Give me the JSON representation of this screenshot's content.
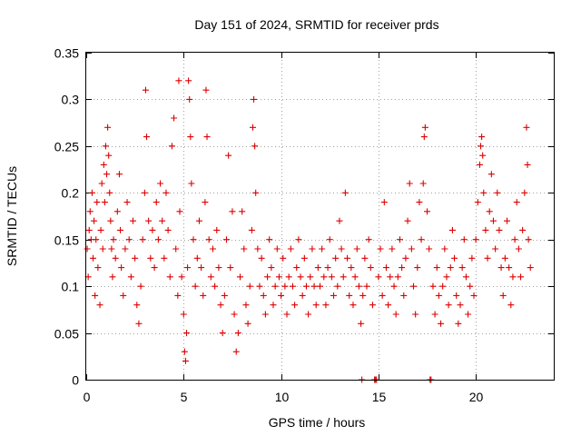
{
  "chart_data": {
    "type": "scatter",
    "title": "Day 151 of 2024, SRMTID for receiver prds",
    "xlabel": "GPS time / hours",
    "ylabel": "SRMTID / TECUs",
    "xlim": [
      0,
      24
    ],
    "ylim": [
      0,
      0.35
    ],
    "xticks": [
      0,
      5,
      10,
      15,
      20
    ],
    "xtick_labels": [
      "0",
      "5",
      "10",
      "15",
      "20"
    ],
    "yticks": [
      0,
      0.05,
      0.1,
      0.15,
      0.2,
      0.25,
      0.3,
      0.35
    ],
    "ytick_labels": [
      "0",
      "0.05",
      "0.1",
      "0.15",
      "0.2",
      "0.25",
      "0.3",
      "0.35"
    ],
    "grid": true,
    "marker": "+",
    "marker_color": "#dd0000",
    "series": [
      {
        "name": "SRMTID",
        "points": [
          [
            0.05,
            0.14
          ],
          [
            0.1,
            0.11
          ],
          [
            0.15,
            0.16
          ],
          [
            0.2,
            0.18
          ],
          [
            0.25,
            0.15
          ],
          [
            0.3,
            0.2
          ],
          [
            0.35,
            0.13
          ],
          [
            0.4,
            0.17
          ],
          [
            0.45,
            0.09
          ],
          [
            0.5,
            0.15
          ],
          [
            0.55,
            0.19
          ],
          [
            0.6,
            0.12
          ],
          [
            0.7,
            0.08
          ],
          [
            0.75,
            0.16
          ],
          [
            0.8,
            0.21
          ],
          [
            0.85,
            0.14
          ],
          [
            0.9,
            0.23
          ],
          [
            0.95,
            0.19
          ],
          [
            1.0,
            0.25
          ],
          [
            1.05,
            0.22
          ],
          [
            1.1,
            0.27
          ],
          [
            1.15,
            0.24
          ],
          [
            1.2,
            0.2
          ],
          [
            1.25,
            0.17
          ],
          [
            1.3,
            0.14
          ],
          [
            1.35,
            0.11
          ],
          [
            1.4,
            0.15
          ],
          [
            1.5,
            0.13
          ],
          [
            1.6,
            0.18
          ],
          [
            1.7,
            0.22
          ],
          [
            1.75,
            0.16
          ],
          [
            1.8,
            0.12
          ],
          [
            1.9,
            0.09
          ],
          [
            2.0,
            0.14
          ],
          [
            2.1,
            0.19
          ],
          [
            2.2,
            0.15
          ],
          [
            2.3,
            0.11
          ],
          [
            2.4,
            0.17
          ],
          [
            2.5,
            0.13
          ],
          [
            2.6,
            0.08
          ],
          [
            2.7,
            0.06
          ],
          [
            2.8,
            0.1
          ],
          [
            2.9,
            0.15
          ],
          [
            3.0,
            0.2
          ],
          [
            3.05,
            0.31
          ],
          [
            3.1,
            0.26
          ],
          [
            3.2,
            0.17
          ],
          [
            3.3,
            0.13
          ],
          [
            3.4,
            0.16
          ],
          [
            3.5,
            0.12
          ],
          [
            3.6,
            0.19
          ],
          [
            3.7,
            0.15
          ],
          [
            3.8,
            0.21
          ],
          [
            3.9,
            0.17
          ],
          [
            4.0,
            0.13
          ],
          [
            4.1,
            0.2
          ],
          [
            4.2,
            0.16
          ],
          [
            4.3,
            0.11
          ],
          [
            4.4,
            0.25
          ],
          [
            4.5,
            0.28
          ],
          [
            4.6,
            0.14
          ],
          [
            4.7,
            0.09
          ],
          [
            4.75,
            0.32
          ],
          [
            4.8,
            0.18
          ],
          [
            4.9,
            0.11
          ],
          [
            5.0,
            0.07
          ],
          [
            5.05,
            0.03
          ],
          [
            5.1,
            0.02
          ],
          [
            5.15,
            0.05
          ],
          [
            5.2,
            0.12
          ],
          [
            5.25,
            0.32
          ],
          [
            5.3,
            0.3
          ],
          [
            5.35,
            0.26
          ],
          [
            5.4,
            0.21
          ],
          [
            5.5,
            0.15
          ],
          [
            5.6,
            0.1
          ],
          [
            5.7,
            0.13
          ],
          [
            5.8,
            0.17
          ],
          [
            5.9,
            0.12
          ],
          [
            6.0,
            0.09
          ],
          [
            6.1,
            0.19
          ],
          [
            6.15,
            0.31
          ],
          [
            6.2,
            0.26
          ],
          [
            6.3,
            0.15
          ],
          [
            6.4,
            0.11
          ],
          [
            6.5,
            0.14
          ],
          [
            6.6,
            0.1
          ],
          [
            6.7,
            0.16
          ],
          [
            6.8,
            0.12
          ],
          [
            6.9,
            0.08
          ],
          [
            7.0,
            0.05
          ],
          [
            7.1,
            0.09
          ],
          [
            7.2,
            0.15
          ],
          [
            7.3,
            0.24
          ],
          [
            7.4,
            0.12
          ],
          [
            7.5,
            0.18
          ],
          [
            7.6,
            0.07
          ],
          [
            7.7,
            0.03
          ],
          [
            7.8,
            0.05
          ],
          [
            7.9,
            0.11
          ],
          [
            8.0,
            0.18
          ],
          [
            8.1,
            0.14
          ],
          [
            8.2,
            0.08
          ],
          [
            8.3,
            0.06
          ],
          [
            8.4,
            0.1
          ],
          [
            8.5,
            0.16
          ],
          [
            8.55,
            0.27
          ],
          [
            8.6,
            0.3
          ],
          [
            8.65,
            0.25
          ],
          [
            8.7,
            0.2
          ],
          [
            8.8,
            0.14
          ],
          [
            8.9,
            0.1
          ],
          [
            9.0,
            0.13
          ],
          [
            9.1,
            0.09
          ],
          [
            9.2,
            0.07
          ],
          [
            9.3,
            0.11
          ],
          [
            9.4,
            0.15
          ],
          [
            9.5,
            0.12
          ],
          [
            9.6,
            0.08
          ],
          [
            9.7,
            0.1
          ],
          [
            9.8,
            0.14
          ],
          [
            9.9,
            0.11
          ],
          [
            10.0,
            0.09
          ],
          [
            10.1,
            0.13
          ],
          [
            10.2,
            0.1
          ],
          [
            10.3,
            0.07
          ],
          [
            10.4,
            0.11
          ],
          [
            10.5,
            0.14
          ],
          [
            10.6,
            0.1
          ],
          [
            10.7,
            0.08
          ],
          [
            10.8,
            0.12
          ],
          [
            10.9,
            0.15
          ],
          [
            11.0,
            0.11
          ],
          [
            11.1,
            0.09
          ],
          [
            11.2,
            0.13
          ],
          [
            11.3,
            0.1
          ],
          [
            11.4,
            0.07
          ],
          [
            11.5,
            0.11
          ],
          [
            11.6,
            0.14
          ],
          [
            11.7,
            0.1
          ],
          [
            11.8,
            0.08
          ],
          [
            11.9,
            0.12
          ],
          [
            12.0,
            0.1
          ],
          [
            12.1,
            0.14
          ],
          [
            12.2,
            0.11
          ],
          [
            12.3,
            0.08
          ],
          [
            12.4,
            0.12
          ],
          [
            12.5,
            0.15
          ],
          [
            12.6,
            0.11
          ],
          [
            12.7,
            0.09
          ],
          [
            12.8,
            0.13
          ],
          [
            12.9,
            0.1
          ],
          [
            13.0,
            0.17
          ],
          [
            13.1,
            0.14
          ],
          [
            13.2,
            0.11
          ],
          [
            13.3,
            0.2
          ],
          [
            13.4,
            0.13
          ],
          [
            13.5,
            0.09
          ],
          [
            13.6,
            0.12
          ],
          [
            13.7,
            0.08
          ],
          [
            13.8,
            0.11
          ],
          [
            13.9,
            0.14
          ],
          [
            14.0,
            0.1
          ],
          [
            14.1,
            0.06
          ],
          [
            14.15,
            0.0
          ],
          [
            14.2,
            0.09
          ],
          [
            14.3,
            0.13
          ],
          [
            14.4,
            0.1
          ],
          [
            14.5,
            0.15
          ],
          [
            14.6,
            0.12
          ],
          [
            14.7,
            0.08
          ],
          [
            14.8,
            0.0
          ],
          [
            14.85,
            0.0
          ],
          [
            14.9,
            0.0
          ],
          [
            15.0,
            0.11
          ],
          [
            15.1,
            0.14
          ],
          [
            15.2,
            0.09
          ],
          [
            15.3,
            0.19
          ],
          [
            15.4,
            0.12
          ],
          [
            15.5,
            0.08
          ],
          [
            15.6,
            0.11
          ],
          [
            15.7,
            0.14
          ],
          [
            15.8,
            0.1
          ],
          [
            15.9,
            0.07
          ],
          [
            16.0,
            0.11
          ],
          [
            16.1,
            0.15
          ],
          [
            16.2,
            0.12
          ],
          [
            16.3,
            0.09
          ],
          [
            16.4,
            0.13
          ],
          [
            16.5,
            0.17
          ],
          [
            16.6,
            0.21
          ],
          [
            16.7,
            0.14
          ],
          [
            16.8,
            0.1
          ],
          [
            16.9,
            0.07
          ],
          [
            17.0,
            0.12
          ],
          [
            17.1,
            0.19
          ],
          [
            17.2,
            0.15
          ],
          [
            17.3,
            0.21
          ],
          [
            17.35,
            0.26
          ],
          [
            17.4,
            0.27
          ],
          [
            17.5,
            0.18
          ],
          [
            17.6,
            0.14
          ],
          [
            17.65,
            0.0
          ],
          [
            17.7,
            0.0
          ],
          [
            17.8,
            0.1
          ],
          [
            17.9,
            0.07
          ],
          [
            18.0,
            0.12
          ],
          [
            18.1,
            0.09
          ],
          [
            18.2,
            0.06
          ],
          [
            18.3,
            0.1
          ],
          [
            18.4,
            0.14
          ],
          [
            18.5,
            0.11
          ],
          [
            18.6,
            0.08
          ],
          [
            18.7,
            0.12
          ],
          [
            18.8,
            0.16
          ],
          [
            18.9,
            0.13
          ],
          [
            19.0,
            0.09
          ],
          [
            19.1,
            0.06
          ],
          [
            19.2,
            0.08
          ],
          [
            19.3,
            0.12
          ],
          [
            19.4,
            0.15
          ],
          [
            19.5,
            0.11
          ],
          [
            19.6,
            0.07
          ],
          [
            19.7,
            0.1
          ],
          [
            19.8,
            0.13
          ],
          [
            19.9,
            0.09
          ],
          [
            20.0,
            0.15
          ],
          [
            20.1,
            0.19
          ],
          [
            20.2,
            0.23
          ],
          [
            20.25,
            0.25
          ],
          [
            20.3,
            0.26
          ],
          [
            20.35,
            0.24
          ],
          [
            20.4,
            0.2
          ],
          [
            20.5,
            0.16
          ],
          [
            20.6,
            0.13
          ],
          [
            20.7,
            0.18
          ],
          [
            20.8,
            0.22
          ],
          [
            20.9,
            0.17
          ],
          [
            21.0,
            0.14
          ],
          [
            21.1,
            0.2
          ],
          [
            21.2,
            0.16
          ],
          [
            21.3,
            0.12
          ],
          [
            21.4,
            0.09
          ],
          [
            21.5,
            0.13
          ],
          [
            21.6,
            0.17
          ],
          [
            21.7,
            0.12
          ],
          [
            21.8,
            0.08
          ],
          [
            21.9,
            0.11
          ],
          [
            22.0,
            0.15
          ],
          [
            22.1,
            0.19
          ],
          [
            22.2,
            0.14
          ],
          [
            22.3,
            0.11
          ],
          [
            22.4,
            0.16
          ],
          [
            22.5,
            0.2
          ],
          [
            22.6,
            0.27
          ],
          [
            22.65,
            0.23
          ],
          [
            22.7,
            0.15
          ],
          [
            22.8,
            0.12
          ]
        ]
      }
    ]
  }
}
